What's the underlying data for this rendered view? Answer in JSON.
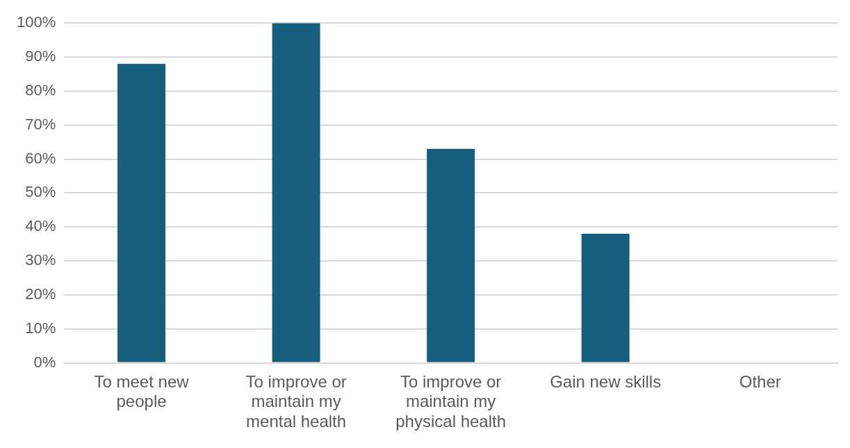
{
  "chart_data": {
    "type": "bar",
    "categories": [
      "To meet new people",
      "To improve or maintain my mental health",
      "To improve or maintain my physical health",
      "Gain new skills",
      "Other"
    ],
    "values": [
      88,
      100,
      63,
      38,
      0
    ],
    "color": "#165e7e",
    "ylim": [
      0,
      100
    ],
    "yticks": [
      {
        "value": 0,
        "label": "0%"
      },
      {
        "value": 10,
        "label": "10%"
      },
      {
        "value": 20,
        "label": "20%"
      },
      {
        "value": 30,
        "label": "30%"
      },
      {
        "value": 40,
        "label": "40%"
      },
      {
        "value": 50,
        "label": "50%"
      },
      {
        "value": 60,
        "label": "60%"
      },
      {
        "value": 70,
        "label": "70%"
      },
      {
        "value": 80,
        "label": "80%"
      },
      {
        "value": 90,
        "label": "90%"
      },
      {
        "value": 100,
        "label": "100%"
      }
    ],
    "grid": "y",
    "legend": false
  }
}
